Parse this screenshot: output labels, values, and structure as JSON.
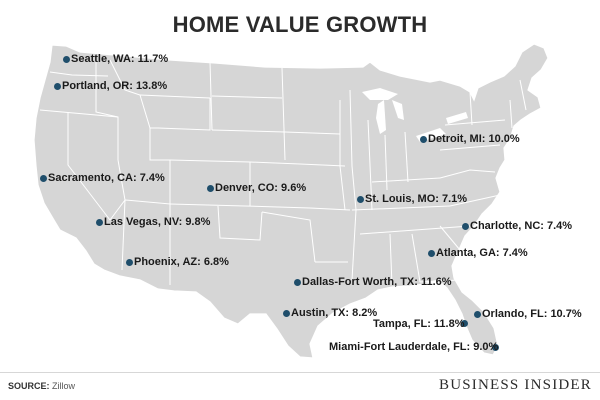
{
  "title": "HOME VALUE GROWTH",
  "source_label": "SOURCE:",
  "source_value": "Zillow",
  "brand": "BUSINESS INSIDER",
  "colors": {
    "land": "#d6d6d6",
    "border": "#ffffff",
    "dot": "#1f4e6b",
    "water": "#ffffff"
  },
  "cities": [
    {
      "name": "Seattle, WA: 11.7%"
    },
    {
      "name": "Portland, OR: 13.8%"
    },
    {
      "name": "Sacramento, CA: 7.4%"
    },
    {
      "name": "Las Vegas, NV: 9.8%"
    },
    {
      "name": "Phoenix, AZ: 6.8%"
    },
    {
      "name": "Denver, CO: 9.6%"
    },
    {
      "name": "Dallas-Fort Worth, TX: 11.6%"
    },
    {
      "name": "Austin, TX: 8.2%"
    },
    {
      "name": "St. Louis, MO: 7.1%"
    },
    {
      "name": "Detroit, MI: 10.0%"
    },
    {
      "name": "Charlotte, NC: 7.4%"
    },
    {
      "name": "Atlanta, GA: 7.4%"
    },
    {
      "name": "Orlando, FL: 10.7%"
    },
    {
      "name": "Tampa, FL: 11.8%"
    },
    {
      "name": "Miami-Fort Lauderdale, FL: 9.0%"
    }
  ]
}
